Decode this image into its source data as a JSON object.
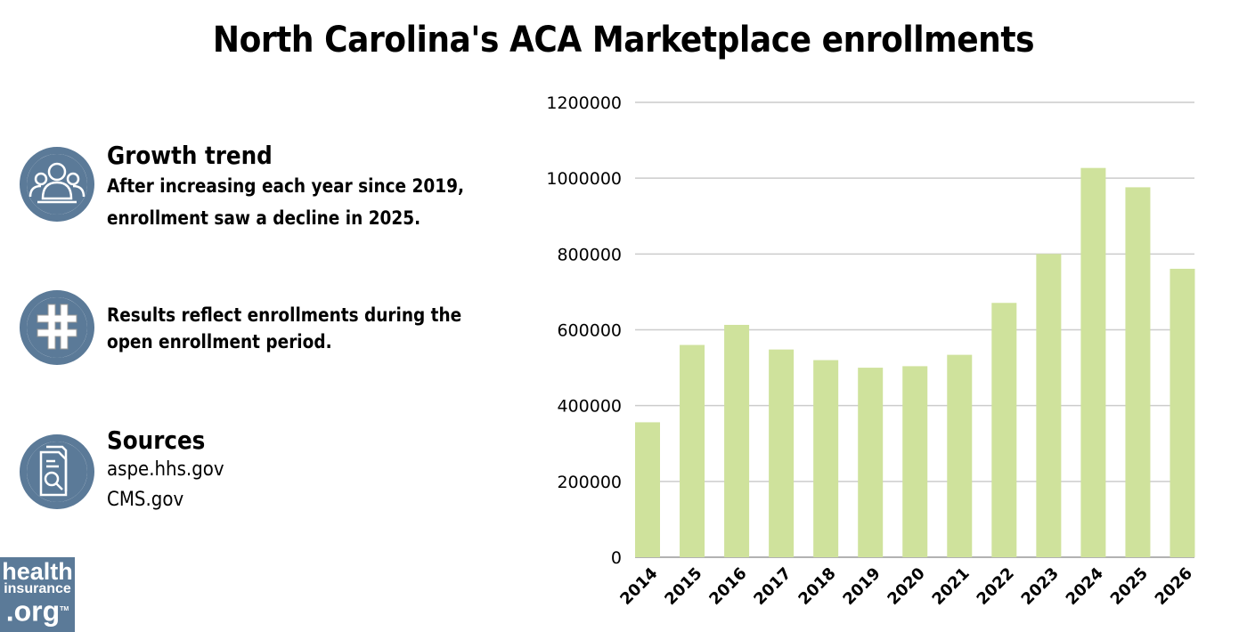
{
  "title": "North Carolina's ACA Marketplace enrollments",
  "sections": [
    {
      "icon": "people-group-icon",
      "heading": "Growth trend",
      "lines": [
        "After increasing each year since 2019,",
        "enrollment saw a decline in 2025."
      ]
    },
    {
      "icon": "hashtag-icon",
      "lines": [
        "Results reflect enrollments during the",
        "open enrollment period."
      ]
    },
    {
      "icon": "document-search-icon",
      "heading": "Sources",
      "sources": [
        "aspe.hhs.gov",
        "CMS.gov"
      ]
    }
  ],
  "logo": {
    "line1": "health",
    "line2": "insurance",
    "line3": ".org",
    "tm": "TM"
  },
  "colors": {
    "bar": "#cfe29c",
    "icon": "#5b7a98",
    "grid": "#cccccc"
  },
  "chart_data": {
    "type": "bar",
    "title": "",
    "xlabel": "",
    "ylabel": "",
    "categories": [
      "2014",
      "2015",
      "2016",
      "2017",
      "2018",
      "2019",
      "2020",
      "2021",
      "2022",
      "2023",
      "2024",
      "2025",
      "2026"
    ],
    "values": [
      356000,
      560000,
      613000,
      548000,
      520000,
      500000,
      504000,
      534000,
      671000,
      800000,
      1027000,
      976000,
      761000
    ],
    "ylim": [
      0,
      1200000
    ],
    "yticks": [
      "0",
      "200000",
      "400000",
      "600000",
      "800000",
      "1000000",
      "1200000"
    ],
    "grid": true,
    "legend": "none"
  }
}
